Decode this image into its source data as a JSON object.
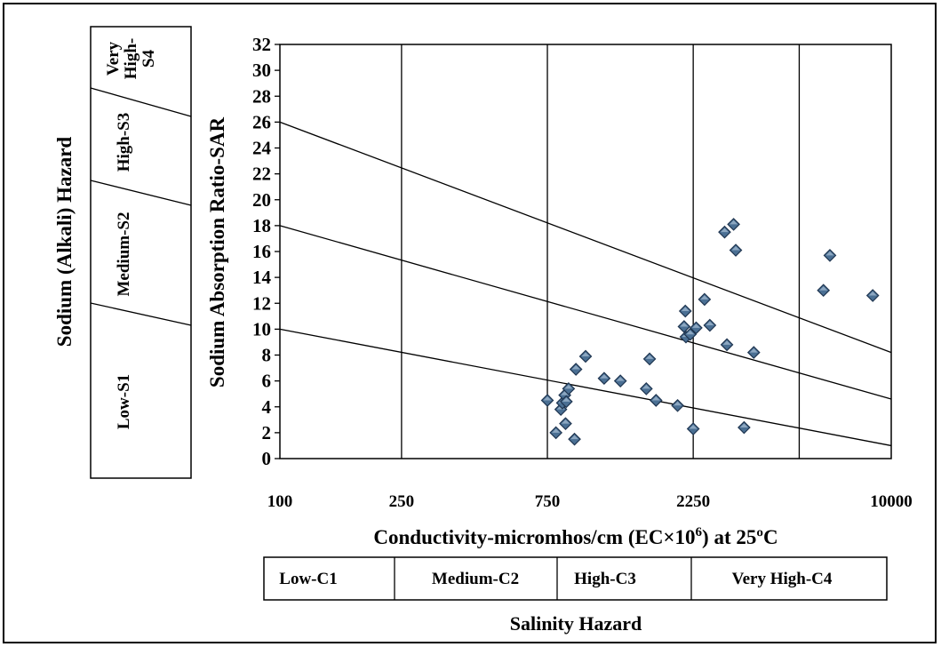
{
  "chart_data": {
    "type": "scatter",
    "ylabel": "Sodium Absorption Ratio-SAR",
    "xlabel_prefix": "Conductivity-micromhos/cm (EC×10",
    "xlabel_sup": "6",
    "xlabel_suffix": ") at 25ºC",
    "x_scale": "log",
    "xlim": [
      100,
      10000
    ],
    "ylim": [
      0,
      32
    ],
    "x_ticks": [
      100,
      250,
      750,
      2250,
      10000
    ],
    "x_tick_labels": [
      "100",
      "250",
      "750",
      "2250",
      "10000"
    ],
    "y_ticks": [
      0,
      2,
      4,
      6,
      8,
      10,
      12,
      14,
      16,
      18,
      20,
      22,
      24,
      26,
      28,
      30,
      32
    ],
    "y_tick_labels": [
      "0",
      "2",
      "4",
      "6",
      "8",
      "10",
      "12",
      "14",
      "16",
      "18",
      "20",
      "22",
      "24",
      "26",
      "28",
      "30",
      "32"
    ],
    "vertical_gridlines_at": [
      250,
      750,
      2250,
      5000
    ],
    "boundary_lines": [
      {
        "x": [
          100,
          10000
        ],
        "y": [
          26,
          8.2
        ]
      },
      {
        "x": [
          100,
          10000
        ],
        "y": [
          18,
          4.6
        ]
      },
      {
        "x": [
          100,
          10000
        ],
        "y": [
          10,
          1.0
        ]
      }
    ],
    "marker": {
      "shape": "diamond",
      "color": "#4a6f93",
      "edge": "#1f3550"
    },
    "points": [
      {
        "x": 750,
        "y": 4.5
      },
      {
        "x": 800,
        "y": 2.0
      },
      {
        "x": 830,
        "y": 3.8
      },
      {
        "x": 840,
        "y": 4.3
      },
      {
        "x": 855,
        "y": 4.9
      },
      {
        "x": 865,
        "y": 4.4
      },
      {
        "x": 860,
        "y": 2.7
      },
      {
        "x": 880,
        "y": 5.4
      },
      {
        "x": 920,
        "y": 1.5
      },
      {
        "x": 930,
        "y": 6.9
      },
      {
        "x": 1000,
        "y": 7.9
      },
      {
        "x": 1150,
        "y": 6.2
      },
      {
        "x": 1300,
        "y": 6.0
      },
      {
        "x": 1580,
        "y": 5.4
      },
      {
        "x": 1620,
        "y": 7.7
      },
      {
        "x": 1700,
        "y": 4.5
      },
      {
        "x": 2000,
        "y": 4.1
      },
      {
        "x": 2100,
        "y": 10.2
      },
      {
        "x": 2120,
        "y": 11.4
      },
      {
        "x": 2130,
        "y": 9.4
      },
      {
        "x": 2200,
        "y": 9.6
      },
      {
        "x": 2250,
        "y": 2.3
      },
      {
        "x": 2300,
        "y": 10.1
      },
      {
        "x": 2450,
        "y": 12.3
      },
      {
        "x": 2550,
        "y": 10.3
      },
      {
        "x": 2850,
        "y": 17.5
      },
      {
        "x": 2900,
        "y": 8.8
      },
      {
        "x": 3050,
        "y": 18.1
      },
      {
        "x": 3100,
        "y": 16.1
      },
      {
        "x": 3300,
        "y": 2.4
      },
      {
        "x": 3550,
        "y": 8.2
      },
      {
        "x": 6000,
        "y": 13.0
      },
      {
        "x": 6300,
        "y": 15.7
      },
      {
        "x": 8700,
        "y": 12.6
      }
    ]
  },
  "sodium_panel": {
    "title": "Sodium (Alkali) Hazard",
    "bands": [
      "Low-S1",
      "Medium-S2",
      "High-S3",
      "Very High-S4"
    ],
    "very_high_lines": [
      "Very",
      "High-",
      "S4"
    ]
  },
  "salinity_panel": {
    "categories": [
      "Low-C1",
      "Medium-C2",
      "High-C3",
      "Very High-C4"
    ],
    "title": "Salinity Hazard"
  }
}
